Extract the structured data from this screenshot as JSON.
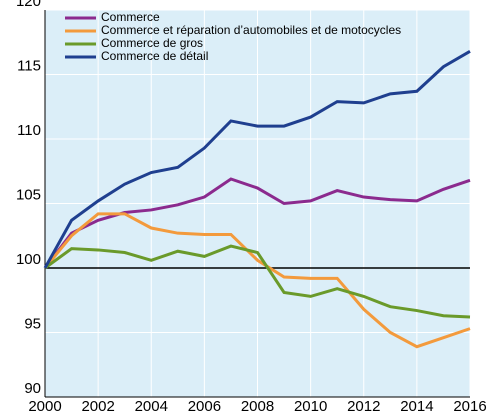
{
  "chart_data": {
    "type": "line",
    "x": [
      2000,
      2001,
      2002,
      2003,
      2004,
      2005,
      2006,
      2007,
      2008,
      2009,
      2010,
      2011,
      2012,
      2013,
      2014,
      2015,
      2016
    ],
    "series": [
      {
        "name": "Commerce",
        "color": "#8b2a8e",
        "values": [
          100,
          102.7,
          103.7,
          104.3,
          104.5,
          104.9,
          105.5,
          106.9,
          106.2,
          105.0,
          105.2,
          106.0,
          105.5,
          105.3,
          105.2,
          106.1,
          106.8
        ]
      },
      {
        "name": "Commerce et réparation d’automobiles et de motocycles",
        "color": "#f39a3c",
        "values": [
          100,
          102.5,
          104.2,
          104.2,
          103.1,
          102.7,
          102.6,
          102.6,
          100.6,
          99.3,
          99.2,
          99.2,
          96.8,
          95.0,
          93.9,
          94.6,
          95.3
        ]
      },
      {
        "name": "Commerce de gros",
        "color": "#6a9a2a",
        "values": [
          100,
          101.5,
          101.4,
          101.2,
          100.6,
          101.3,
          100.9,
          101.7,
          101.2,
          98.1,
          97.8,
          98.4,
          97.8,
          97.0,
          96.7,
          96.3,
          96.2
        ]
      },
      {
        "name": "Commerce de détail",
        "color": "#1f3f8f",
        "values": [
          100,
          103.7,
          105.2,
          106.5,
          107.4,
          107.8,
          109.3,
          111.4,
          111.0,
          111.0,
          111.7,
          112.9,
          112.8,
          113.5,
          113.7,
          115.6,
          116.8
        ]
      }
    ],
    "xlim": [
      2000,
      2016
    ],
    "xticks": [
      2000,
      2002,
      2004,
      2006,
      2008,
      2010,
      2012,
      2014,
      2016
    ],
    "ylim": [
      90,
      120
    ],
    "yticks": [
      90,
      95,
      100,
      105,
      110,
      115,
      120
    ],
    "reference_line": 100,
    "grid": true,
    "legend": "upper left",
    "background": "#dbeef8"
  }
}
